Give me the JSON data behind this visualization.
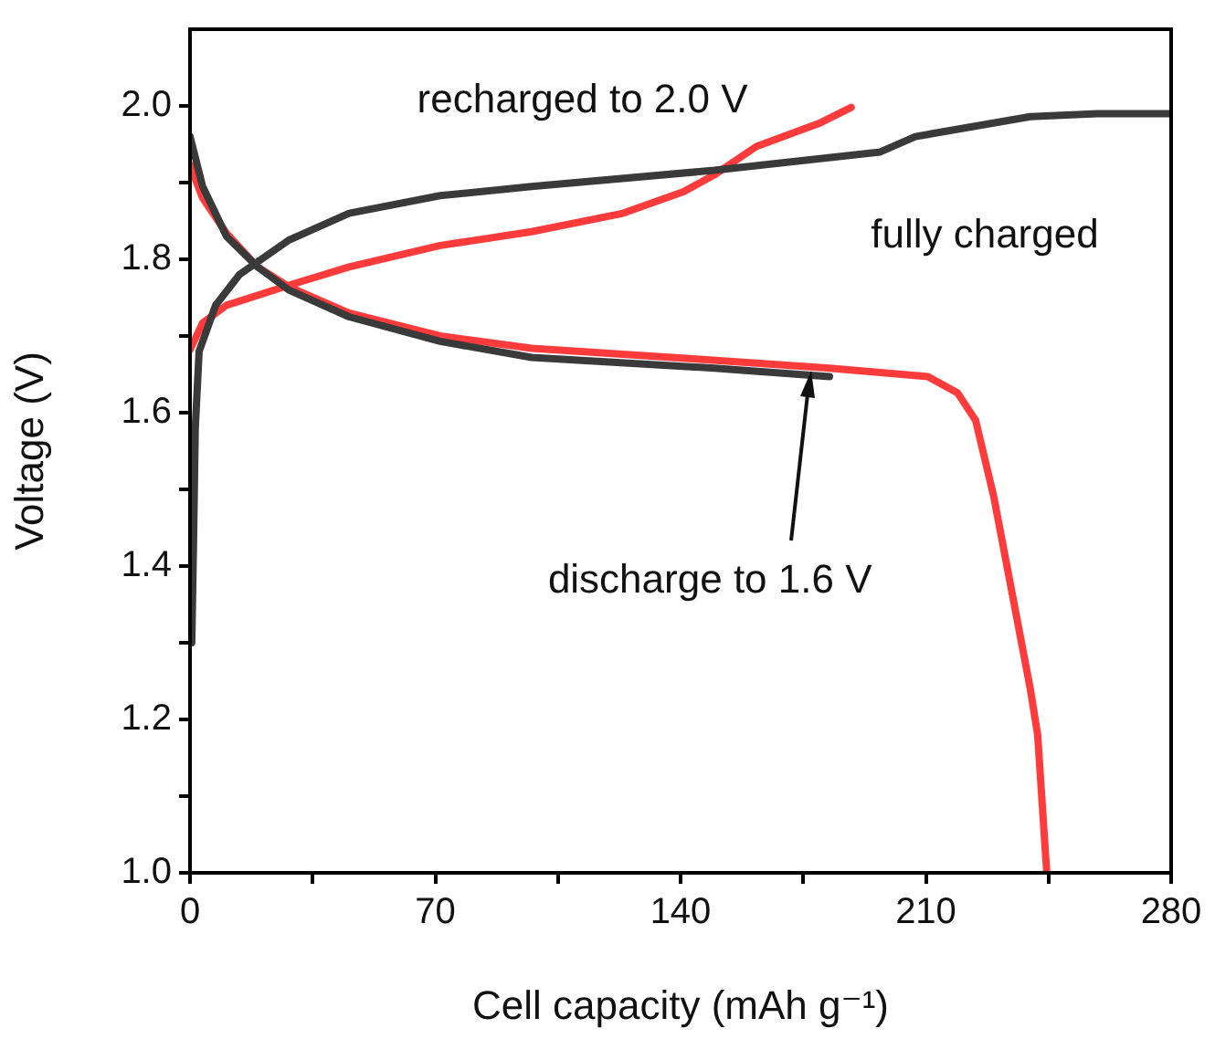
{
  "chart_data": {
    "type": "line",
    "xlabel": "Cell capacity (mAh g⁻¹)",
    "ylabel": "Voltage (V)",
    "xlim": [
      0,
      280
    ],
    "ylim": [
      1.0,
      2.1
    ],
    "xticks": [
      0,
      {
        "value": 35,
        "label": null
      },
      70,
      {
        "value": 105,
        "label": null
      },
      140,
      {
        "value": 175,
        "label": null
      },
      210,
      {
        "value": 245,
        "label": null
      },
      280
    ],
    "yticks": [
      {
        "value": 1,
        "label": "1.0"
      },
      {
        "value": 1.1,
        "label": null
      },
      1.2,
      {
        "value": 1.3,
        "label": null
      },
      1.4,
      {
        "value": 1.5,
        "label": null
      },
      1.6,
      {
        "value": 1.7,
        "label": null
      },
      1.8,
      {
        "value": 1.9,
        "label": null
      },
      {
        "value": 2,
        "label": "2.0"
      }
    ],
    "marker": "none",
    "line_style": "solid",
    "series": [
      {
        "type": "line",
        "color": "#3a3a3a",
        "x": [
          0.5,
          1,
          1.5,
          2.6,
          7.3,
          14.1,
          28.2,
          45.4,
          71.4,
          97.5,
          149.6,
          197,
          207,
          239.8,
          259,
          280
        ],
        "values": [
          1.3,
          1.43,
          1.58,
          1.68,
          1.74,
          1.78,
          1.825,
          1.86,
          1.883,
          1.895,
          1.916,
          1.94,
          1.96,
          1.986,
          1.99,
          1.99
        ]
      },
      {
        "type": "line",
        "color": "#3a3a3a",
        "x": [
          0,
          3.6,
          10.4,
          19.3,
          28.2,
          45.4,
          71.4,
          97.5,
          149.6,
          182.5
        ],
        "values": [
          1.96,
          1.895,
          1.83,
          1.79,
          1.76,
          1.725,
          1.693,
          1.672,
          1.658,
          1.647
        ]
      },
      {
        "type": "line",
        "color": "#ff3b3b",
        "x": [
          0,
          3.6,
          10.4,
          19.3,
          28.2,
          45.4,
          71.4,
          97.5,
          144.4,
          182.5,
          210.6,
          219,
          224.2,
          229.4,
          234.6,
          239.8,
          241.9,
          244.5
        ],
        "values": [
          1.923,
          1.88,
          1.834,
          1.79,
          1.764,
          1.73,
          1.7,
          1.684,
          1.67,
          1.658,
          1.647,
          1.626,
          1.59,
          1.49,
          1.365,
          1.24,
          1.18,
          1.0
        ]
      },
      {
        "type": "line",
        "color": "#ff3b3b",
        "x": [
          0,
          3.6,
          10.4,
          28.2,
          45.4,
          71.4,
          97.5,
          123.6,
          140.8,
          149.6,
          161.6,
          179.4,
          188.7
        ],
        "values": [
          1.682,
          1.717,
          1.74,
          1.766,
          1.79,
          1.818,
          1.836,
          1.86,
          1.888,
          1.91,
          1.947,
          1.977,
          1.998
        ]
      }
    ],
    "annotations": [
      "recharged to 2.0 V",
      "fully charged",
      "discharge to 1.6 V"
    ]
  }
}
